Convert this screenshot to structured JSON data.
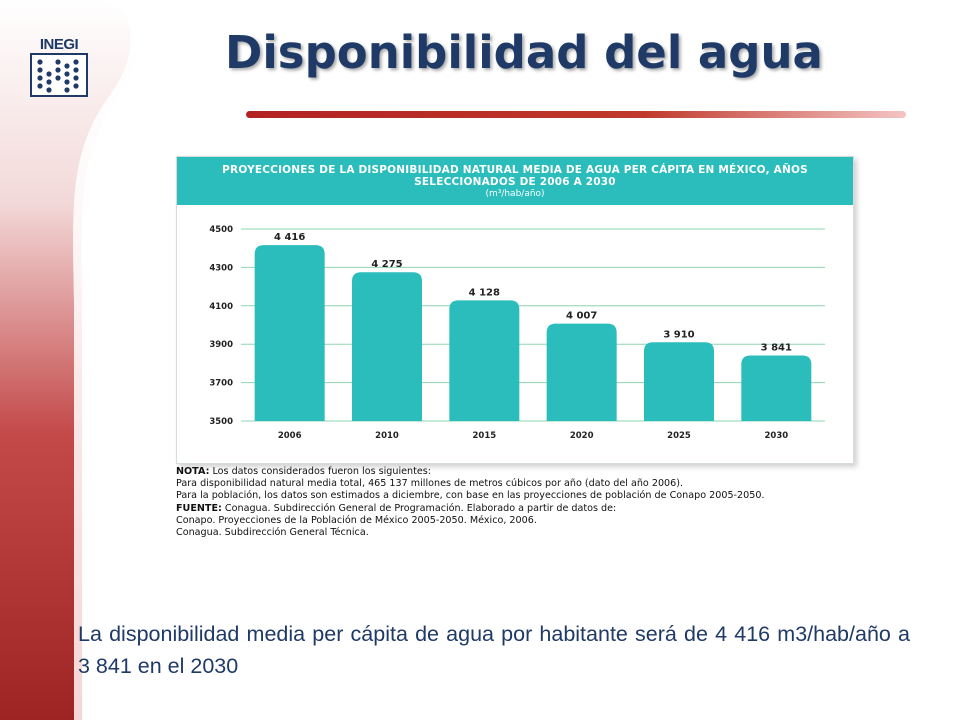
{
  "logo": {
    "text": "INEGI"
  },
  "slide": {
    "title": "Disponibilidad del agua"
  },
  "colors": {
    "accent": "#2bbcbc",
    "title": "#1f3a66",
    "rule": "#b22222",
    "sidebar": "#a62a2a"
  },
  "chart_data": {
    "type": "bar",
    "title": "PROYECCIONES DE LA DISPONIBILIDAD NATURAL MEDIA DE AGUA PER CÁPITA EN MÉXICO, AÑOS SELECCIONADOS DE 2006 A 2030",
    "unit": "(m³/hab/año)",
    "categories": [
      "2006",
      "2010",
      "2015",
      "2020",
      "2025",
      "2030"
    ],
    "values": [
      4416,
      4275,
      4128,
      4007,
      3910,
      3841
    ],
    "value_labels": [
      "4 416",
      "4 275",
      "4 128",
      "4 007",
      "3 910",
      "3 841"
    ],
    "yticks": [
      3500,
      3700,
      3900,
      4100,
      4300,
      4500
    ],
    "ylim": [
      3500,
      4500
    ],
    "grid": true,
    "bar_color": "#2bbcbc"
  },
  "notes": {
    "nota_label": "NOTA:",
    "nota_text": " Los datos considerados fueron los siguientes:",
    "line1": "Para disponibilidad natural media total, 465 137 millones de metros cúbicos por año (dato del año 2006).",
    "line2": "Para la población, los datos son estimados a diciembre, con base en las proyecciones de población de Conapo 2005-2050.",
    "fuente_label": "FUENTE:",
    "fuente_text": " Conagua. Subdirección General de Programación. Elaborado a partir de datos de:",
    "line3": "Conapo. Proyecciones de la Población de México 2005-2050. México, 2006.",
    "line4": "Conagua. Subdirección General Técnica."
  },
  "caption": "La disponibilidad media per cápita de agua por habitante será de 4 416 m3/hab/año a 3 841 en el 2030"
}
